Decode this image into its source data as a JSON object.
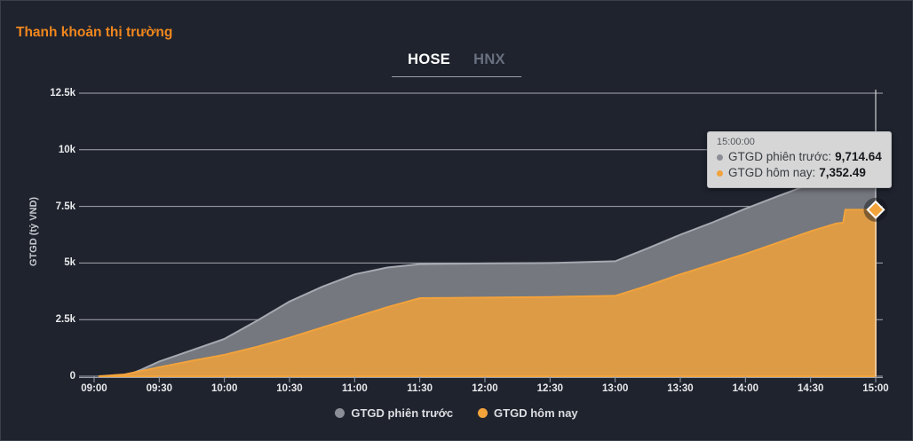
{
  "panel": {
    "title": "Thanh khoản thị trường"
  },
  "tabs": [
    {
      "label": "HOSE",
      "active": true
    },
    {
      "label": "HNX",
      "active": false
    }
  ],
  "colors": {
    "background": "#1f232e",
    "title_accent": "#f0871d",
    "grid": "#c9cbd1",
    "axis_line": "#9aa0aa",
    "axis_text": "#e8e9eb",
    "crosshair": "#e3e4e8",
    "prev_session_fill": "#75787f",
    "prev_session_stroke": "#a6a9b0",
    "today_fill": "#dd9b45",
    "today_stroke": "#f2a33c",
    "tooltip_bg": "#d6d6d7"
  },
  "chart_data": {
    "type": "area",
    "title": "Thanh khoản thị trường",
    "xlabel": "",
    "ylabel": "GTGD (tỷ VND)",
    "ylim": [
      0,
      12500
    ],
    "grid": "horizontal",
    "legend_position": "bottom",
    "crosshair_time": "15:00",
    "y_ticks": [
      [
        0,
        "0"
      ],
      [
        2500,
        "2.5k"
      ],
      [
        5000,
        "5k"
      ],
      [
        7500,
        "7.5k"
      ],
      [
        10000,
        "10k"
      ],
      [
        12500,
        "12.5k"
      ]
    ],
    "x_ticks": [
      "09:00",
      "09:30",
      "10:00",
      "10:30",
      "11:00",
      "11:30",
      "12:00",
      "12:30",
      "13:00",
      "13:30",
      "14:00",
      "14:30",
      "15:00"
    ],
    "series": [
      {
        "name": "GTGD phiên trước",
        "fill": "#75787f",
        "stroke": "#a6a9b0",
        "stroke_mode": "top",
        "marker": "circle",
        "marker_fill": "#8b8e96",
        "final_value": 9714.64,
        "points": [
          [
            "09:14",
            0
          ],
          [
            "09:22",
            300
          ],
          [
            "09:30",
            650
          ],
          [
            "09:45",
            1150
          ],
          [
            "10:00",
            1650
          ],
          [
            "10:15",
            2450
          ],
          [
            "10:30",
            3300
          ],
          [
            "10:45",
            3950
          ],
          [
            "11:00",
            4500
          ],
          [
            "11:15",
            4800
          ],
          [
            "11:30",
            4950
          ],
          [
            "12:00",
            4980
          ],
          [
            "12:30",
            5000
          ],
          [
            "13:00",
            5080
          ],
          [
            "13:15",
            5650
          ],
          [
            "13:30",
            6250
          ],
          [
            "13:45",
            6800
          ],
          [
            "14:00",
            7400
          ],
          [
            "14:15",
            7950
          ],
          [
            "14:30",
            8500
          ],
          [
            "14:45",
            9250
          ],
          [
            "15:00",
            9714.64
          ]
        ]
      },
      {
        "name": "GTGD hôm nay",
        "fill": "#dd9b45",
        "stroke": "#f2a33c",
        "stroke_mode": "all",
        "marker": "diamond",
        "marker_fill": "#f2a33c",
        "final_value": 7352.49,
        "points": [
          [
            "09:02",
            0
          ],
          [
            "09:14",
            80
          ],
          [
            "09:30",
            400
          ],
          [
            "09:45",
            680
          ],
          [
            "10:00",
            950
          ],
          [
            "10:15",
            1300
          ],
          [
            "10:30",
            1700
          ],
          [
            "10:45",
            2150
          ],
          [
            "11:00",
            2600
          ],
          [
            "11:15",
            3050
          ],
          [
            "11:30",
            3450
          ],
          [
            "12:00",
            3470
          ],
          [
            "12:30",
            3500
          ],
          [
            "13:00",
            3550
          ],
          [
            "13:15",
            4000
          ],
          [
            "13:30",
            4500
          ],
          [
            "13:45",
            4950
          ],
          [
            "14:00",
            5400
          ],
          [
            "14:15",
            5900
          ],
          [
            "14:30",
            6400
          ],
          [
            "14:42",
            6750
          ],
          [
            "14:45",
            6780
          ],
          [
            "14:46",
            7352.49
          ],
          [
            "15:00",
            7352.49
          ]
        ]
      }
    ]
  },
  "tooltip": {
    "time": "15:00:00",
    "rows": [
      {
        "label": "GTGD phiên trước:",
        "value": "9,714.64",
        "color": "#8b8e96"
      },
      {
        "label": "GTGD hôm nay:",
        "value": "7,352.49",
        "color": "#f2a33c"
      }
    ]
  },
  "legend": {
    "items": [
      {
        "label": "GTGD phiên trước",
        "color": "#8b8e96"
      },
      {
        "label": "GTGD hôm nay",
        "color": "#f2a33c"
      }
    ]
  }
}
